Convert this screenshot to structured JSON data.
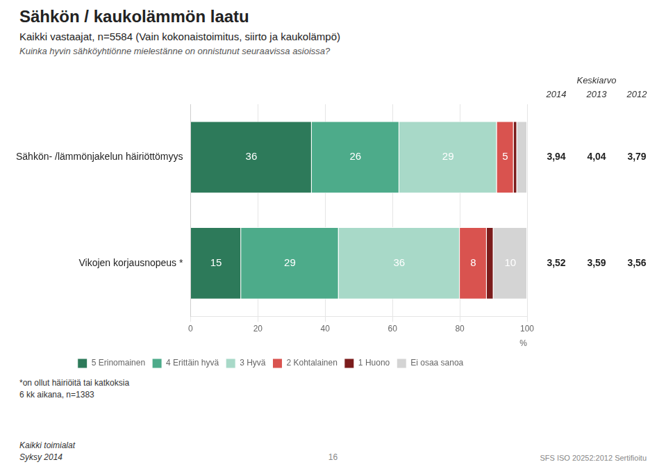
{
  "chart_data": {
    "type": "bar",
    "orientation": "horizontal",
    "stacked": true,
    "title": "Sähkön / kaukolämmön laatu",
    "subtitle": "Kaikki vastaajat, n=5584 (Vain kokonaistoimitus, siirto ja kaukolämpö)",
    "question": "Kuinka hyvin sähköyhtiönne mielestänne on onnistunut seuraavissa asioissa?",
    "categories": [
      "Sähkön- /lämmönjakelun häiriöttömyys",
      "Vikojen korjausnopeus *"
    ],
    "series": [
      {
        "name": "5 Erinomainen",
        "color": "#2d7a5a",
        "values": [
          36,
          15
        ],
        "value_labels": [
          "36",
          "15"
        ]
      },
      {
        "name": "4 Erittäin hyvä",
        "color": "#4dab8a",
        "values": [
          26,
          29
        ],
        "value_labels": [
          "26",
          "29"
        ]
      },
      {
        "name": "3 Hyvä",
        "color": "#a8d9c8",
        "values": [
          29,
          36
        ],
        "value_labels": [
          "29",
          "36"
        ]
      },
      {
        "name": "2 Kohtalainen",
        "color": "#d9534f",
        "values": [
          5,
          8
        ],
        "value_labels": [
          "5",
          "8"
        ]
      },
      {
        "name": "1 Huono",
        "color": "#7b1c1c",
        "values": [
          1,
          2
        ],
        "value_labels": [
          null,
          null
        ]
      },
      {
        "name": "Ei osaa sanoa",
        "color": "#d4d4d4",
        "values": [
          3,
          10
        ],
        "value_labels": [
          null,
          "10"
        ]
      }
    ],
    "xlim": [
      0,
      100
    ],
    "xticks": [
      0,
      20,
      40,
      60,
      80,
      100
    ],
    "xlabel": "%",
    "grid": true,
    "legend": "bottom",
    "data_labels": true,
    "mean_table": {
      "header": "Keskiarvo",
      "years": [
        "2014",
        "2013",
        "2012"
      ],
      "rows": [
        [
          {
            "value": 3.94,
            "label": "3,94"
          },
          {
            "value": 4.04,
            "label": "4,04"
          },
          {
            "value": 3.79,
            "label": "3,79"
          }
        ],
        [
          {
            "value": 3.52,
            "label": "3,52"
          },
          {
            "value": 3.59,
            "label": "3,59"
          },
          {
            "value": 3.56,
            "label": "3,56"
          }
        ]
      ]
    },
    "footnotes": [
      "*on ollut häiriöitä tai katkoksia",
      "6 kk aikana, n=1383"
    ],
    "notes_left": [
      "Kaikki toimialat",
      "Syksy 2014"
    ],
    "page_number": "16",
    "certification": "SFS ISO 20252:2012 Sertifioitu"
  }
}
